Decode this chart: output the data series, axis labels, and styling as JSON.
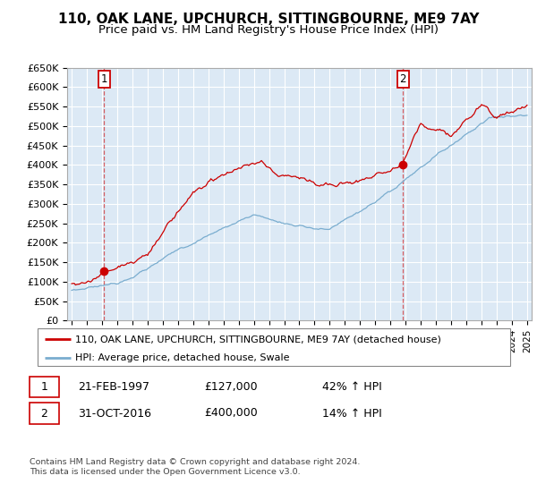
{
  "title": "110, OAK LANE, UPCHURCH, SITTINGBOURNE, ME9 7AY",
  "subtitle": "Price paid vs. HM Land Registry's House Price Index (HPI)",
  "ylabel_ticks": [
    "£0",
    "£50K",
    "£100K",
    "£150K",
    "£200K",
    "£250K",
    "£300K",
    "£350K",
    "£400K",
    "£450K",
    "£500K",
    "£550K",
    "£600K",
    "£650K"
  ],
  "ytick_values": [
    0,
    50000,
    100000,
    150000,
    200000,
    250000,
    300000,
    350000,
    400000,
    450000,
    500000,
    550000,
    600000,
    650000
  ],
  "xmin": 1994.7,
  "xmax": 2025.3,
  "ymin": 0,
  "ymax": 650000,
  "background_color": "#dce9f5",
  "grid_color": "#ffffff",
  "line1_color": "#cc0000",
  "line2_color": "#7aadcf",
  "sale1_date": 1997.13,
  "sale1_price": 127000,
  "sale2_date": 2016.83,
  "sale2_price": 400000,
  "sale1_label": "1",
  "sale2_label": "2",
  "legend1": "110, OAK LANE, UPCHURCH, SITTINGBOURNE, ME9 7AY (detached house)",
  "legend2": "HPI: Average price, detached house, Swale",
  "table_row1_num": "1",
  "table_row1_date": "21-FEB-1997",
  "table_row1_price": "£127,000",
  "table_row1_hpi": "42% ↑ HPI",
  "table_row2_num": "2",
  "table_row2_date": "31-OCT-2016",
  "table_row2_price": "£400,000",
  "table_row2_hpi": "14% ↑ HPI",
  "footer": "Contains HM Land Registry data © Crown copyright and database right 2024.\nThis data is licensed under the Open Government Licence v3.0.",
  "title_fontsize": 11,
  "subtitle_fontsize": 9.5
}
